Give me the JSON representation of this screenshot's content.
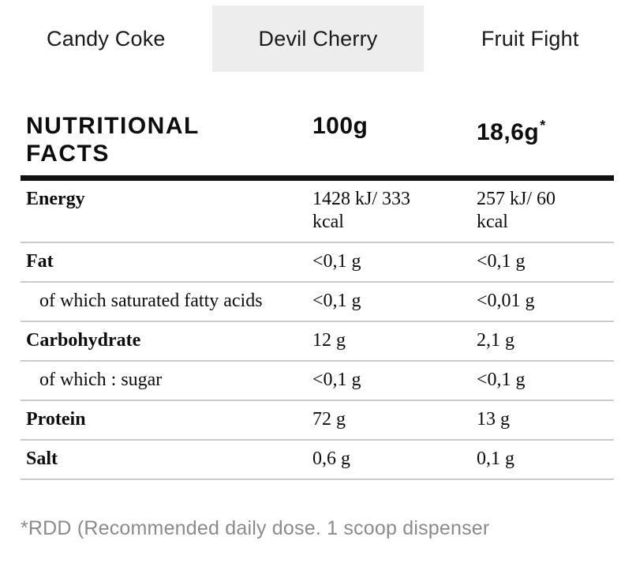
{
  "tabs": [
    {
      "label": "Candy Coke",
      "selected": false
    },
    {
      "label": "Devil Cherry",
      "selected": true
    },
    {
      "label": "Fruit Fight",
      "selected": false
    }
  ],
  "table": {
    "header": {
      "title_line1": "NUTRITIONAL",
      "title_line2": "FACTS",
      "col_per100": "100g",
      "col_serving": "18,6g",
      "col_serving_mark": "*"
    },
    "rows": [
      {
        "label": "Energy",
        "per100": "1428 kJ/ 333 kcal",
        "serving": "257 kJ/ 60 kcal"
      },
      {
        "label": "Fat",
        "per100": "<0,1 g",
        "serving": "<0,1 g"
      },
      {
        "label": "of which saturated fatty acids",
        "per100": "<0,1 g",
        "serving": "<0,01 g"
      },
      {
        "label": "Carbohydrate",
        "per100": "12 g",
        "serving": "2,1 g"
      },
      {
        "label": "of which : sugar",
        "per100": "<0,1 g",
        "serving": "<0,1 g"
      },
      {
        "label": "Protein",
        "per100": "72 g",
        "serving": "13 g"
      },
      {
        "label": "Salt",
        "per100": "0,6 g",
        "serving": "0,1 g"
      }
    ]
  },
  "footnote": "*RDD (Recommended daily dose. 1 scoop dispenser",
  "colors": {
    "selected_tab_bg": "#EDEDED",
    "divider": "#CBCBCB",
    "heavy_rule": "#111111",
    "text": "#0D0D0D",
    "footnote_text": "#8B8B8B"
  }
}
